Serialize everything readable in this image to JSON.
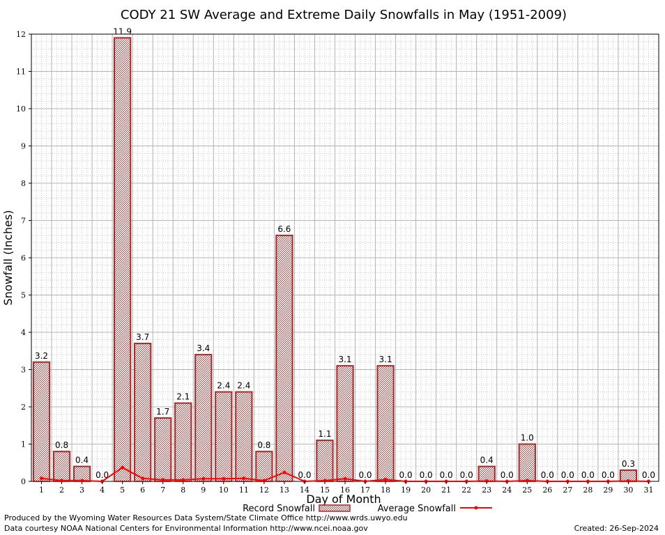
{
  "chart_data": {
    "type": "bar",
    "title": "CODY 21 SW Average and Extreme Daily Snowfalls in May (1951-2009)",
    "xlabel": "Day of Month",
    "ylabel": "Snowfall (Inches)",
    "ylim": [
      0,
      12
    ],
    "yticks": [
      "0",
      "1",
      "2",
      "3",
      "4",
      "5",
      "6",
      "7",
      "8",
      "9",
      "10",
      "11",
      "12"
    ],
    "categories": [
      "1",
      "2",
      "3",
      "4",
      "5",
      "6",
      "7",
      "8",
      "9",
      "10",
      "11",
      "12",
      "13",
      "14",
      "15",
      "16",
      "17",
      "18",
      "19",
      "20",
      "21",
      "22",
      "23",
      "24",
      "25",
      "26",
      "27",
      "28",
      "29",
      "30",
      "31"
    ],
    "grid": true,
    "legend_position": "bottom",
    "series": [
      {
        "name": "Record Snowfall",
        "kind": "bar",
        "color": "#a52a2a",
        "values": [
          3.2,
          0.8,
          0.4,
          0.0,
          11.9,
          3.7,
          1.7,
          2.1,
          3.4,
          2.4,
          2.4,
          0.8,
          6.6,
          0.0,
          1.1,
          3.1,
          0.0,
          3.1,
          0.0,
          0.0,
          0.0,
          0.0,
          0.4,
          0.0,
          1.0,
          0.0,
          0.0,
          0.0,
          0.0,
          0.3,
          0.0
        ],
        "labels": [
          "3.2",
          "0.8",
          "0.4",
          "0.0",
          "11.9",
          "3.7",
          "1.7",
          "2.1",
          "3.4",
          "2.4",
          "2.4",
          "0.8",
          "6.6",
          "0.0",
          "1.1",
          "3.1",
          "0.0",
          "3.1",
          "0.0",
          "0.0",
          "0.0",
          "0.0",
          "0.4",
          "0.0",
          "1.0",
          "0.0",
          "0.0",
          "0.0",
          "0.0",
          "0.3",
          "0.0"
        ],
        "bar_present": [
          true,
          true,
          true,
          false,
          true,
          true,
          true,
          true,
          true,
          true,
          true,
          true,
          true,
          false,
          true,
          true,
          false,
          true,
          false,
          false,
          false,
          false,
          true,
          false,
          true,
          false,
          false,
          false,
          false,
          true,
          false
        ]
      },
      {
        "name": "Average Snowfall",
        "kind": "line",
        "color": "#ff0000",
        "values": [
          0.08,
          0.02,
          0.02,
          0.0,
          0.37,
          0.08,
          0.04,
          0.04,
          0.07,
          0.07,
          0.08,
          0.02,
          0.24,
          0.0,
          0.02,
          0.07,
          0.0,
          0.05,
          0.0,
          0.0,
          0.0,
          0.0,
          0.01,
          0.0,
          0.02,
          0.0,
          0.0,
          0.0,
          0.0,
          0.01,
          0.0
        ]
      }
    ]
  },
  "credits": {
    "line1": "Produced by the Wyoming Water Resources Data System/State Climate Office http://www.wrds.uwyo.edu",
    "line2": "Data courtesy NOAA National Centers for Environmental Information http://www.ncei.noaa.gov",
    "created": "Created:  26-Sep-2024"
  }
}
